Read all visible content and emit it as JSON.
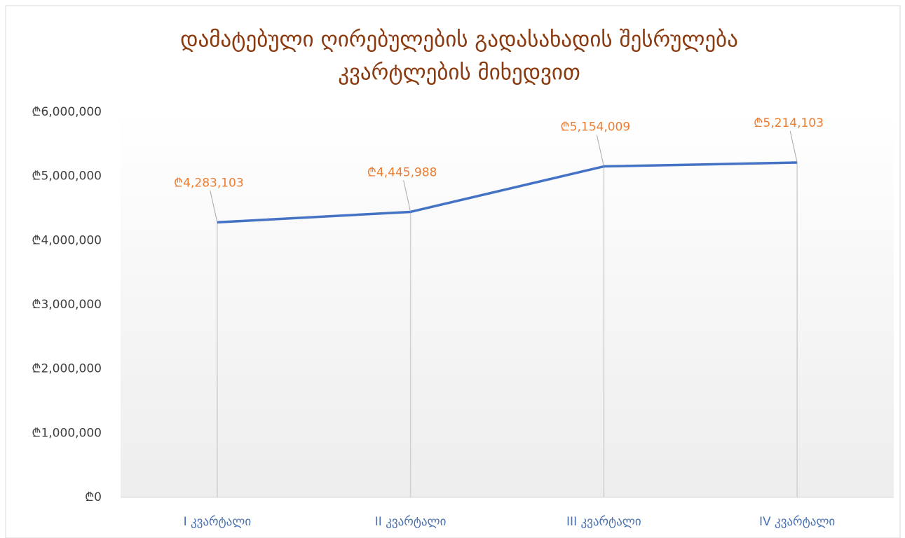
{
  "chart_data": {
    "type": "line",
    "title": [
      "დამატებული ღირებულების  გადასახადის შესრულება",
      "კვარტლების მიხედვით"
    ],
    "categories": [
      "I კვარტალი",
      "II კვარტალი",
      "III კვარტალი",
      "IV კვარტალი"
    ],
    "series": [
      {
        "name": "",
        "color": "#4472c4",
        "values": [
          4283103,
          4445988,
          5154009,
          5214103
        ],
        "value_labels": [
          "₾4,283,103",
          "₾4,445,988",
          "₾5,154,009",
          "₾5,214,103"
        ]
      }
    ],
    "label_color": "#ed7d31",
    "ylim": [
      0,
      6000000
    ],
    "yticks": [
      {
        "value": 0,
        "label": "₾0"
      },
      {
        "value": 1000000,
        "label": "₾1,000,000"
      },
      {
        "value": 2000000,
        "label": "₾2,000,000"
      },
      {
        "value": 3000000,
        "label": "₾3,000,000"
      },
      {
        "value": 4000000,
        "label": "₾4,000,000"
      },
      {
        "value": 5000000,
        "label": "₾5,000,000"
      },
      {
        "value": 6000000,
        "label": "₾6,000,000"
      }
    ],
    "grid": false,
    "drop_lines": true
  }
}
